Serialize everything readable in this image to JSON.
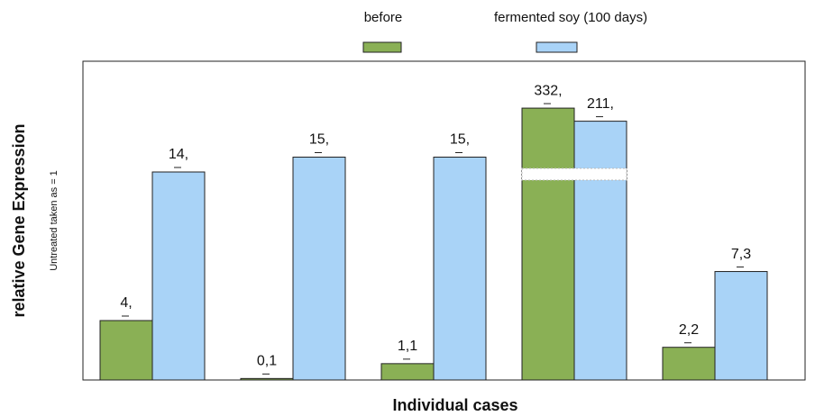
{
  "chart_data": {
    "type": "bar",
    "x_label": "Individual cases",
    "y_label": "relative Gene Expression",
    "y_sublabel": "Untreated taken as = 1",
    "categories": [
      null,
      null,
      null,
      null,
      null
    ],
    "series": [
      {
        "name": "before",
        "color": "#8ab055",
        "values": [
          4,
          0.1,
          1.1,
          332,
          2.2
        ],
        "value_labels": [
          "4,",
          "0,1",
          "1,1",
          "332,",
          "2,2"
        ]
      },
      {
        "name": "fermented soy  (100 days)",
        "color": "#a9d3f7",
        "values": [
          14,
          15,
          15,
          211,
          7.3
        ],
        "value_labels": [
          "14,",
          "15,",
          "15,",
          "211,",
          "7,3"
        ]
      }
    ],
    "axis_break": true
  }
}
